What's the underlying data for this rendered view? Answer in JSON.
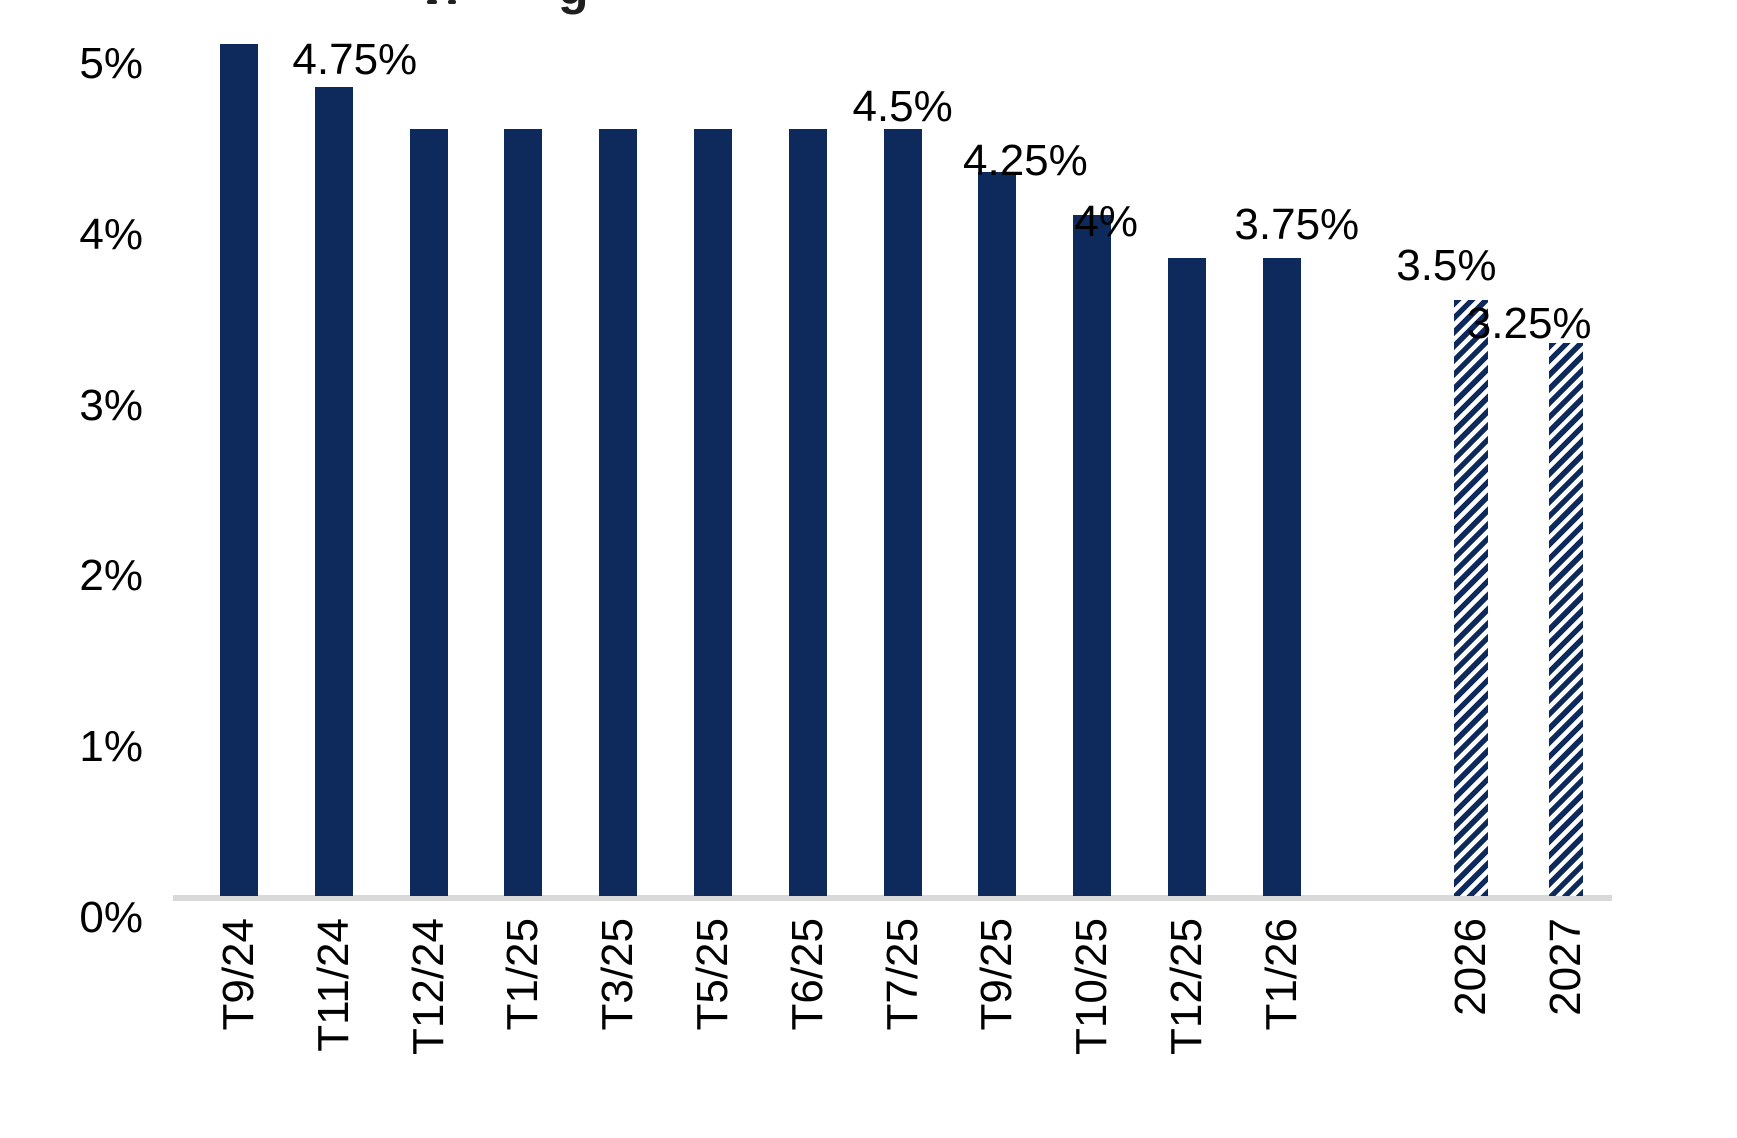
{
  "header": {
    "clipped_title_fragment": "g",
    "title_note": "title cropped out of frame at top edge"
  },
  "chart_data": {
    "type": "bar",
    "title": "",
    "xlabel": "",
    "ylabel": "",
    "categories": [
      "T9/24",
      "T11/24",
      "T12/24",
      "T1/25",
      "T3/25",
      "T5/25",
      "T6/25",
      "T7/25",
      "T9/25",
      "T10/25",
      "T12/25",
      "T1/26",
      "2026",
      "2027"
    ],
    "values": [
      5,
      4.75,
      4.5,
      4.5,
      4.5,
      4.5,
      4.5,
      4.5,
      4.25,
      4,
      3.75,
      3.75,
      3.5,
      3.25
    ],
    "bar_styles": [
      "solid",
      "solid",
      "solid",
      "solid",
      "solid",
      "solid",
      "solid",
      "solid",
      "solid",
      "solid",
      "solid",
      "solid",
      "hatched",
      "hatched"
    ],
    "data_labels": [
      "",
      "4.75%",
      "",
      "",
      "",
      "",
      "",
      "4.5%",
      "4.25%",
      "4%",
      "",
      "3.75%",
      "3.5%",
      "3.25%"
    ],
    "ytick_labels": [
      "5%",
      "4%",
      "3%",
      "2%",
      "1%",
      "0%"
    ],
    "ytick_values": [
      5,
      4,
      3,
      2,
      1,
      0
    ],
    "ylim": [
      0,
      5
    ],
    "grid": "off",
    "legend": "none",
    "bar_color": "#0E2A5C",
    "axis_line_color": "#D9D9D9",
    "text_color": "#000000",
    "hatched_bars_meaning_categories": [
      "2026",
      "2027"
    ]
  }
}
